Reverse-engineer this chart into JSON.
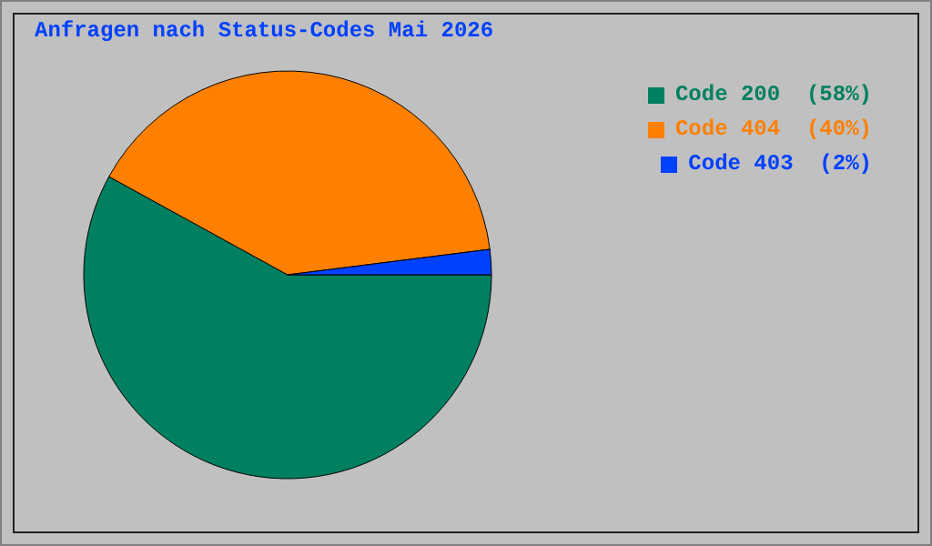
{
  "chart_data": {
    "type": "pie",
    "title": "Anfragen nach Status-Codes Mai 2026",
    "categories": [
      "Code 200",
      "Code 404",
      "Code 403"
    ],
    "values": [
      58,
      40,
      2
    ],
    "value_labels": [
      "(58%)",
      "(40%)",
      "(2%)"
    ],
    "colors": [
      "#008060",
      "#ff8000",
      "#0040ff"
    ],
    "legend": "top right"
  }
}
